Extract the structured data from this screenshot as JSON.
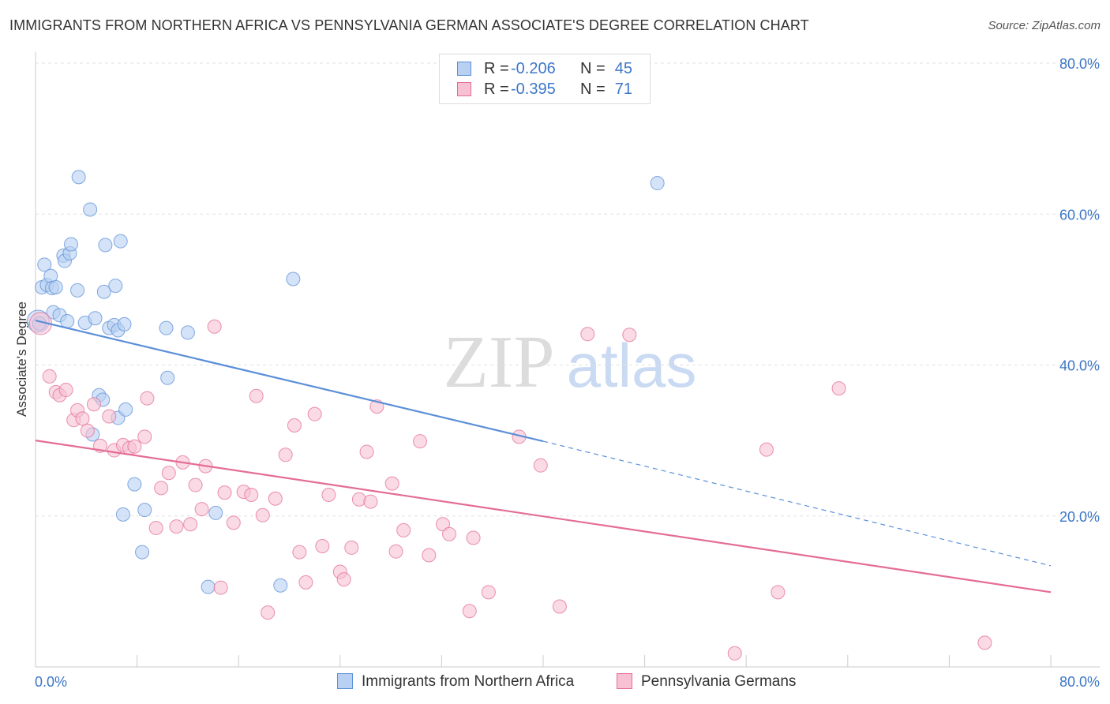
{
  "chart_data": {
    "type": "scatter",
    "title": "IMMIGRANTS FROM NORTHERN AFRICA VS PENNSYLVANIA GERMAN ASSOCIATE'S DEGREE CORRELATION CHART",
    "source": "Source: ZipAtlas.com",
    "ylabel": "Associate's Degree",
    "xlim": [
      0,
      80
    ],
    "ylim": [
      0,
      80
    ],
    "x_tick_labels": [
      "0.0%",
      "80.0%"
    ],
    "y_tick_values": [
      20,
      40,
      60,
      80
    ],
    "y_tick_labels": [
      "20.0%",
      "40.0%",
      "60.0%",
      "80.0%"
    ],
    "grid": true,
    "watermark": {
      "zip": "ZIP",
      "atlas": "atlas"
    },
    "legend_stats": [
      {
        "r_label": "R = ",
        "r_value": "-0.206",
        "n_label": "N = ",
        "n_value": "45",
        "color": "#5b8fd8"
      },
      {
        "r_label": "R = ",
        "r_value": "-0.395",
        "n_label": "N = ",
        "n_value": "71",
        "color": "#e46d95"
      }
    ],
    "series": [
      {
        "name": "Immigrants from Northern Africa",
        "color": "#5b8fd8",
        "fill": "#b8d0f2",
        "trend": {
          "x0": 0,
          "y0": 45.9,
          "x1": 40,
          "y1": 29.9,
          "dash_to_x": 80,
          "dash_to_y": 13.4
        },
        "points": [
          [
            0.2,
            45.8
          ],
          [
            0.3,
            45.5
          ],
          [
            0.5,
            50.3
          ],
          [
            0.9,
            50.6
          ],
          [
            0.7,
            53.3
          ],
          [
            1.2,
            51.8
          ],
          [
            1.3,
            50.2
          ],
          [
            1.6,
            50.3
          ],
          [
            1.4,
            47.0
          ],
          [
            1.9,
            46.6
          ],
          [
            2.2,
            54.5
          ],
          [
            2.3,
            53.8
          ],
          [
            2.7,
            54.8
          ],
          [
            2.8,
            56.0
          ],
          [
            2.5,
            45.8
          ],
          [
            3.3,
            49.9
          ],
          [
            3.4,
            64.9
          ],
          [
            3.9,
            45.6
          ],
          [
            4.3,
            60.6
          ],
          [
            4.7,
            46.2
          ],
          [
            5.0,
            36.0
          ],
          [
            5.3,
            35.4
          ],
          [
            5.4,
            49.7
          ],
          [
            5.5,
            55.9
          ],
          [
            5.8,
            44.9
          ],
          [
            6.2,
            45.3
          ],
          [
            6.3,
            50.5
          ],
          [
            6.5,
            44.6
          ],
          [
            6.7,
            56.4
          ],
          [
            6.5,
            33.0
          ],
          [
            7.1,
            34.1
          ],
          [
            4.5,
            30.8
          ],
          [
            7.8,
            24.2
          ],
          [
            8.6,
            20.8
          ],
          [
            6.9,
            20.2
          ],
          [
            8.4,
            15.2
          ],
          [
            10.3,
            44.9
          ],
          [
            10.4,
            38.3
          ],
          [
            12.0,
            44.3
          ],
          [
            14.2,
            20.4
          ],
          [
            13.6,
            10.6
          ],
          [
            19.3,
            10.8
          ],
          [
            20.3,
            51.4
          ],
          [
            49.0,
            64.1
          ],
          [
            7.0,
            45.4
          ]
        ]
      },
      {
        "name": "Pennsylvania Germans",
        "color": "#e46d95",
        "fill": "#f7c1d3",
        "trend": {
          "x0": 0,
          "y0": 30.0,
          "x1": 80,
          "y1": 9.9
        },
        "points": [
          [
            0.4,
            45.5
          ],
          [
            1.1,
            38.5
          ],
          [
            1.6,
            36.4
          ],
          [
            1.9,
            36.0
          ],
          [
            2.4,
            36.7
          ],
          [
            3.0,
            32.7
          ],
          [
            3.3,
            34.0
          ],
          [
            3.7,
            32.9
          ],
          [
            4.1,
            31.3
          ],
          [
            4.6,
            34.8
          ],
          [
            5.1,
            29.3
          ],
          [
            5.8,
            33.2
          ],
          [
            6.2,
            28.7
          ],
          [
            6.9,
            29.4
          ],
          [
            7.4,
            29.0
          ],
          [
            7.8,
            29.2
          ],
          [
            8.6,
            30.5
          ],
          [
            8.8,
            35.6
          ],
          [
            9.5,
            18.4
          ],
          [
            9.9,
            23.7
          ],
          [
            10.5,
            25.7
          ],
          [
            11.1,
            18.6
          ],
          [
            11.6,
            27.1
          ],
          [
            12.2,
            18.9
          ],
          [
            12.6,
            24.1
          ],
          [
            13.1,
            20.9
          ],
          [
            13.4,
            26.6
          ],
          [
            14.1,
            45.1
          ],
          [
            14.6,
            10.5
          ],
          [
            14.9,
            23.1
          ],
          [
            15.6,
            19.1
          ],
          [
            16.4,
            23.2
          ],
          [
            17.0,
            22.8
          ],
          [
            17.4,
            35.9
          ],
          [
            17.9,
            20.1
          ],
          [
            18.3,
            7.2
          ],
          [
            18.9,
            22.3
          ],
          [
            19.7,
            28.1
          ],
          [
            20.4,
            32.0
          ],
          [
            20.8,
            15.2
          ],
          [
            21.3,
            11.2
          ],
          [
            22.0,
            33.5
          ],
          [
            22.6,
            16.0
          ],
          [
            23.1,
            22.8
          ],
          [
            24.0,
            12.6
          ],
          [
            24.3,
            11.6
          ],
          [
            24.9,
            15.8
          ],
          [
            25.5,
            22.2
          ],
          [
            26.1,
            28.5
          ],
          [
            26.4,
            21.9
          ],
          [
            26.9,
            34.5
          ],
          [
            28.1,
            24.3
          ],
          [
            28.4,
            15.3
          ],
          [
            29.0,
            18.1
          ],
          [
            30.3,
            29.9
          ],
          [
            31.0,
            14.8
          ],
          [
            32.1,
            18.9
          ],
          [
            32.6,
            17.6
          ],
          [
            34.2,
            7.4
          ],
          [
            34.5,
            17.1
          ],
          [
            35.7,
            9.9
          ],
          [
            38.1,
            30.5
          ],
          [
            39.8,
            26.7
          ],
          [
            41.3,
            8.0
          ],
          [
            43.5,
            44.1
          ],
          [
            46.8,
            44.0
          ],
          [
            55.1,
            1.8
          ],
          [
            57.6,
            28.8
          ],
          [
            58.5,
            9.9
          ],
          [
            63.3,
            36.9
          ],
          [
            74.8,
            3.2
          ]
        ]
      }
    ]
  }
}
